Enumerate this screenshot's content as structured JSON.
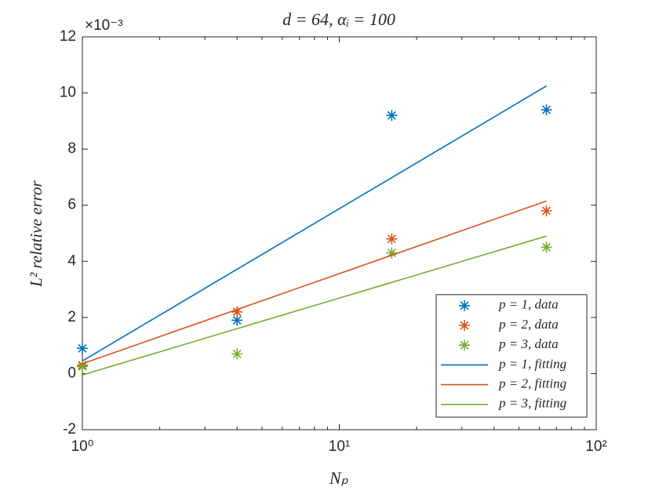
{
  "chart_data": {
    "type": "scatter",
    "title": "d = 64, αᵢ = 100",
    "x_label": "Nₚ",
    "y_label": "L² relative error",
    "y_exponent": "×10⁻³",
    "x_log": true,
    "xlim": [
      1,
      100
    ],
    "ylim": [
      -2,
      12
    ],
    "xticks": [
      {
        "value": 1,
        "label": "10⁰"
      },
      {
        "value": 10,
        "label": "10¹"
      },
      {
        "value": 100,
        "label": "10²"
      }
    ],
    "x_minor_ticks": [
      2,
      3,
      4,
      5,
      6,
      7,
      8,
      9,
      20,
      30,
      40,
      50,
      60,
      70,
      80,
      90
    ],
    "yticks": [
      -2,
      0,
      2,
      4,
      6,
      8,
      10,
      12
    ],
    "grid": false,
    "legend": "lower right",
    "series": [
      {
        "name": "p = 1, data",
        "style": "marker",
        "color": "#0072BD",
        "x": [
          1,
          4,
          16,
          64
        ],
        "values": [
          0.9,
          1.9,
          9.2,
          9.4
        ]
      },
      {
        "name": "p = 2, data",
        "style": "marker",
        "color": "#D95319",
        "x": [
          1,
          4,
          16,
          64
        ],
        "values": [
          0.3,
          2.2,
          4.8,
          5.8
        ]
      },
      {
        "name": "p = 3, data",
        "style": "marker",
        "color": "#77AC30",
        "x": [
          1,
          4,
          16,
          64
        ],
        "values": [
          0.25,
          0.7,
          4.3,
          4.5
        ]
      },
      {
        "name": "p = 1, fitting",
        "style": "line",
        "color": "#0072BD",
        "x": [
          1,
          64
        ],
        "values": [
          0.45,
          10.25
        ]
      },
      {
        "name": "p = 2, fitting",
        "style": "line",
        "color": "#D95319",
        "x": [
          1,
          64
        ],
        "values": [
          0.35,
          6.15
        ]
      },
      {
        "name": "p = 3, fitting",
        "style": "line",
        "color": "#77AC30",
        "x": [
          1,
          64
        ],
        "values": [
          -0.05,
          4.9
        ]
      }
    ]
  }
}
